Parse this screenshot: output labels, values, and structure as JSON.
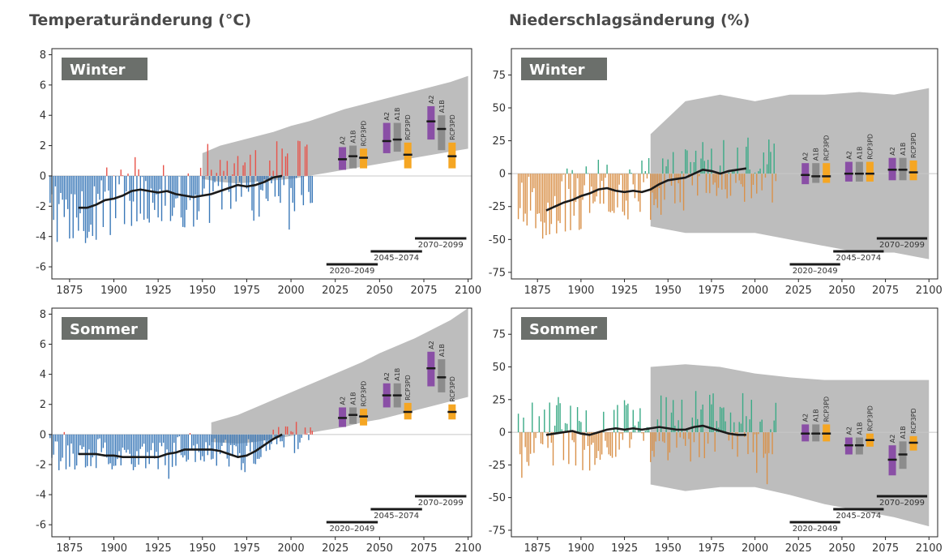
{
  "titles": {
    "temperature": "Temperaturänderung (°C)",
    "precipitation": "Niederschlagsänderung (%)"
  },
  "colors": {
    "temp_positive": "#e8534a",
    "temp_negative": "#3a78b8",
    "precip_positive": "#3aaa86",
    "precip_negative": "#d9914a",
    "uncertainty_band": "#bdbdbd",
    "smoothed_line": "#1a1a1a",
    "scenario_A2": "#8a4fa6",
    "scenario_A1B": "#8c8c8c",
    "scenario_RCP3PD": "#f5a623",
    "label_box": "#6b6f6b",
    "period_bar": "#1a1a1a"
  },
  "chart_data": [
    {
      "type": "bar",
      "variable": "temperature",
      "season": "Winter",
      "xlim": [
        1865,
        2102
      ],
      "ylim": [
        -6.8,
        8.4
      ],
      "xticks": [
        1875,
        1900,
        1925,
        1950,
        1975,
        2000,
        2025,
        2050,
        2075,
        2100
      ],
      "yticks": [
        -6,
        -4,
        -2,
        0,
        2,
        4,
        6,
        8
      ],
      "grid": false,
      "observed_years": [
        1864,
        2012
      ],
      "observed_smoothed": [
        [
          1880,
          -2.1
        ],
        [
          1885,
          -2.1
        ],
        [
          1890,
          -1.9
        ],
        [
          1895,
          -1.6
        ],
        [
          1900,
          -1.5
        ],
        [
          1905,
          -1.3
        ],
        [
          1910,
          -1.0
        ],
        [
          1915,
          -0.9
        ],
        [
          1920,
          -1.0
        ],
        [
          1925,
          -1.1
        ],
        [
          1930,
          -1.0
        ],
        [
          1935,
          -1.2
        ],
        [
          1940,
          -1.3
        ],
        [
          1945,
          -1.4
        ],
        [
          1950,
          -1.3
        ],
        [
          1955,
          -1.2
        ],
        [
          1960,
          -1.0
        ],
        [
          1965,
          -0.8
        ],
        [
          1970,
          -0.6
        ],
        [
          1975,
          -0.7
        ],
        [
          1980,
          -0.6
        ],
        [
          1985,
          -0.4
        ],
        [
          1990,
          -0.1
        ],
        [
          1995,
          0.0
        ]
      ],
      "band": [
        [
          1950,
          -0.2,
          1.5
        ],
        [
          1960,
          -0.4,
          2.0
        ],
        [
          1970,
          -0.5,
          2.3
        ],
        [
          1980,
          -0.4,
          2.6
        ],
        [
          1990,
          -0.3,
          2.9
        ],
        [
          2000,
          -0.2,
          3.3
        ],
        [
          2010,
          0.0,
          3.6
        ],
        [
          2020,
          0.2,
          4.0
        ],
        [
          2030,
          0.4,
          4.4
        ],
        [
          2040,
          0.6,
          4.7
        ],
        [
          2050,
          0.8,
          5.0
        ],
        [
          2060,
          1.0,
          5.3
        ],
        [
          2070,
          1.2,
          5.6
        ],
        [
          2080,
          1.4,
          5.9
        ],
        [
          2090,
          1.6,
          6.2
        ],
        [
          2100,
          1.8,
          6.6
        ]
      ],
      "scenario_groups": [
        {
          "period": "2020–2049",
          "bars": [
            {
              "name": "A2",
              "low": 0.4,
              "high": 1.9,
              "median": 1.1
            },
            {
              "name": "A1B",
              "low": 0.5,
              "high": 2.0,
              "median": 1.3
            },
            {
              "name": "RCP3PD",
              "low": 0.5,
              "high": 1.8,
              "median": 1.2
            }
          ]
        },
        {
          "period": "2045–2074",
          "bars": [
            {
              "name": "A2",
              "low": 1.5,
              "high": 3.5,
              "median": 2.3
            },
            {
              "name": "A1B",
              "low": 1.6,
              "high": 3.5,
              "median": 2.4
            },
            {
              "name": "RCP3PD",
              "low": 0.5,
              "high": 2.2,
              "median": 1.4
            }
          ]
        },
        {
          "period": "2070–2099",
          "bars": [
            {
              "name": "A2",
              "low": 2.4,
              "high": 4.6,
              "median": 3.6
            },
            {
              "name": "A1B",
              "low": 1.7,
              "high": 4.0,
              "median": 3.1
            },
            {
              "name": "RCP3PD",
              "low": 0.5,
              "high": 2.2,
              "median": 1.3
            }
          ]
        }
      ]
    },
    {
      "type": "bar",
      "variable": "precipitation",
      "season": "Winter",
      "xlim": [
        1860,
        2105
      ],
      "ylim": [
        -80,
        95
      ],
      "xticks": [
        1875,
        1900,
        1925,
        1950,
        1975,
        2000,
        2025,
        2050,
        2075,
        2100
      ],
      "yticks": [
        -75,
        -50,
        -25,
        0,
        25,
        50,
        75
      ],
      "grid": false,
      "observed_years": [
        1864,
        2012
      ],
      "observed_smoothed": [
        [
          1880,
          -28
        ],
        [
          1885,
          -25
        ],
        [
          1890,
          -22
        ],
        [
          1895,
          -20
        ],
        [
          1900,
          -17
        ],
        [
          1905,
          -15
        ],
        [
          1910,
          -12
        ],
        [
          1915,
          -11
        ],
        [
          1920,
          -13
        ],
        [
          1925,
          -14
        ],
        [
          1930,
          -13
        ],
        [
          1935,
          -14
        ],
        [
          1940,
          -12
        ],
        [
          1945,
          -8
        ],
        [
          1950,
          -5
        ],
        [
          1955,
          -4
        ],
        [
          1960,
          -3
        ],
        [
          1965,
          0
        ],
        [
          1970,
          3
        ],
        [
          1975,
          2
        ],
        [
          1980,
          0
        ],
        [
          1985,
          2
        ],
        [
          1990,
          3
        ],
        [
          1995,
          4
        ]
      ],
      "band": [
        [
          1940,
          -40,
          30
        ],
        [
          1960,
          -45,
          55
        ],
        [
          1980,
          -45,
          60
        ],
        [
          2000,
          -45,
          55
        ],
        [
          2020,
          -50,
          60
        ],
        [
          2040,
          -55,
          60
        ],
        [
          2060,
          -60,
          62
        ],
        [
          2080,
          -60,
          60
        ],
        [
          2100,
          -65,
          65
        ]
      ],
      "scenario_groups": [
        {
          "period": "2020–2049",
          "bars": [
            {
              "name": "A2",
              "low": -8,
              "high": 8,
              "median": -1
            },
            {
              "name": "A1B",
              "low": -7,
              "high": 8,
              "median": -2
            },
            {
              "name": "RCP3PD",
              "low": -7,
              "high": 8,
              "median": -2
            }
          ]
        },
        {
          "period": "2045–2074",
          "bars": [
            {
              "name": "A2",
              "low": -6,
              "high": 9,
              "median": 0
            },
            {
              "name": "A1B",
              "low": -6,
              "high": 9,
              "median": 0
            },
            {
              "name": "RCP3PD",
              "low": -6,
              "high": 9,
              "median": 0
            }
          ]
        },
        {
          "period": "2070–2099",
          "bars": [
            {
              "name": "A2",
              "low": -5,
              "high": 12,
              "median": 3
            },
            {
              "name": "A1B",
              "low": -5,
              "high": 12,
              "median": 3
            },
            {
              "name": "RCP3PD",
              "low": -5,
              "high": 10,
              "median": 1
            }
          ]
        }
      ]
    },
    {
      "type": "bar",
      "variable": "temperature",
      "season": "Sommer",
      "xlim": [
        1865,
        2102
      ],
      "ylim": [
        -6.8,
        8.4
      ],
      "xticks": [
        1875,
        1900,
        1925,
        1950,
        1975,
        2000,
        2025,
        2050,
        2075,
        2100
      ],
      "yticks": [
        -6,
        -4,
        -2,
        0,
        2,
        4,
        6,
        8
      ],
      "grid": false,
      "observed_years": [
        1864,
        2012
      ],
      "observed_smoothed": [
        [
          1880,
          -1.3
        ],
        [
          1885,
          -1.3
        ],
        [
          1890,
          -1.3
        ],
        [
          1895,
          -1.4
        ],
        [
          1900,
          -1.4
        ],
        [
          1905,
          -1.5
        ],
        [
          1910,
          -1.5
        ],
        [
          1915,
          -1.5
        ],
        [
          1920,
          -1.5
        ],
        [
          1925,
          -1.5
        ],
        [
          1930,
          -1.3
        ],
        [
          1935,
          -1.2
        ],
        [
          1940,
          -1.0
        ],
        [
          1945,
          -1.0
        ],
        [
          1950,
          -1.0
        ],
        [
          1955,
          -1.0
        ],
        [
          1960,
          -1.1
        ],
        [
          1965,
          -1.3
        ],
        [
          1970,
          -1.5
        ],
        [
          1975,
          -1.4
        ],
        [
          1980,
          -1.1
        ],
        [
          1985,
          -0.7
        ],
        [
          1990,
          -0.3
        ],
        [
          1995,
          0.0
        ]
      ],
      "band": [
        [
          1955,
          -0.5,
          0.8
        ],
        [
          1970,
          -0.6,
          1.3
        ],
        [
          1980,
          -0.5,
          1.8
        ],
        [
          1990,
          -0.3,
          2.3
        ],
        [
          2000,
          -0.1,
          2.8
        ],
        [
          2010,
          0.1,
          3.3
        ],
        [
          2020,
          0.3,
          3.8
        ],
        [
          2030,
          0.5,
          4.3
        ],
        [
          2040,
          0.8,
          4.8
        ],
        [
          2050,
          1.0,
          5.4
        ],
        [
          2060,
          1.3,
          5.9
        ],
        [
          2070,
          1.6,
          6.4
        ],
        [
          2080,
          1.9,
          7.0
        ],
        [
          2090,
          2.2,
          7.6
        ],
        [
          2100,
          2.5,
          8.4
        ]
      ],
      "scenario_groups": [
        {
          "period": "2020–2049",
          "bars": [
            {
              "name": "A2",
              "low": 0.5,
              "high": 1.8,
              "median": 1.1
            },
            {
              "name": "A1B",
              "low": 0.7,
              "high": 1.8,
              "median": 1.3
            },
            {
              "name": "RCP3PD",
              "low": 0.6,
              "high": 1.7,
              "median": 1.2
            }
          ]
        },
        {
          "period": "2045–2074",
          "bars": [
            {
              "name": "A2",
              "low": 1.8,
              "high": 3.4,
              "median": 2.6
            },
            {
              "name": "A1B",
              "low": 1.8,
              "high": 3.4,
              "median": 2.6
            },
            {
              "name": "RCP3PD",
              "low": 1.0,
              "high": 2.1,
              "median": 1.5
            }
          ]
        },
        {
          "period": "2070–2099",
          "bars": [
            {
              "name": "A2",
              "low": 3.2,
              "high": 5.5,
              "median": 4.4
            },
            {
              "name": "A1B",
              "low": 2.8,
              "high": 5.0,
              "median": 3.8
            },
            {
              "name": "RCP3PD",
              "low": 1.0,
              "high": 2.0,
              "median": 1.5
            }
          ]
        }
      ]
    },
    {
      "type": "bar",
      "variable": "precipitation",
      "season": "Sommer",
      "xlim": [
        1860,
        2105
      ],
      "ylim": [
        -80,
        95
      ],
      "xticks": [
        1875,
        1900,
        1925,
        1950,
        1975,
        2000,
        2025,
        2050,
        2075,
        2100
      ],
      "yticks": [
        -75,
        -50,
        -25,
        0,
        25,
        50,
        75
      ],
      "grid": false,
      "observed_years": [
        1864,
        2012
      ],
      "observed_smoothed": [
        [
          1880,
          -2
        ],
        [
          1885,
          -1
        ],
        [
          1890,
          0
        ],
        [
          1895,
          1
        ],
        [
          1900,
          -1
        ],
        [
          1905,
          -2
        ],
        [
          1910,
          0
        ],
        [
          1915,
          2
        ],
        [
          1920,
          3
        ],
        [
          1925,
          2
        ],
        [
          1930,
          3
        ],
        [
          1935,
          2
        ],
        [
          1940,
          3
        ],
        [
          1945,
          4
        ],
        [
          1950,
          3
        ],
        [
          1955,
          2
        ],
        [
          1960,
          2
        ],
        [
          1965,
          4
        ],
        [
          1970,
          5
        ],
        [
          1975,
          3
        ],
        [
          1980,
          1
        ],
        [
          1985,
          -1
        ],
        [
          1990,
          -2
        ],
        [
          1995,
          -2
        ]
      ],
      "band": [
        [
          1940,
          -40,
          50
        ],
        [
          1960,
          -45,
          52
        ],
        [
          1980,
          -42,
          50
        ],
        [
          2000,
          -42,
          45
        ],
        [
          2020,
          -48,
          42
        ],
        [
          2040,
          -55,
          40
        ],
        [
          2060,
          -60,
          40
        ],
        [
          2080,
          -65,
          40
        ],
        [
          2100,
          -72,
          40
        ]
      ],
      "scenario_groups": [
        {
          "period": "2020–2049",
          "bars": [
            {
              "name": "A2",
              "low": -7,
              "high": 6,
              "median": -1
            },
            {
              "name": "A1B",
              "low": -7,
              "high": 6,
              "median": -1
            },
            {
              "name": "RCP3PD",
              "low": -7,
              "high": 6,
              "median": -1
            }
          ]
        },
        {
          "period": "2045–2074",
          "bars": [
            {
              "name": "A2",
              "low": -17,
              "high": -4,
              "median": -10
            },
            {
              "name": "A1B",
              "low": -17,
              "high": -4,
              "median": -10
            },
            {
              "name": "RCP3PD",
              "low": -11,
              "high": -1,
              "median": -6
            }
          ]
        },
        {
          "period": "2070–2099",
          "bars": [
            {
              "name": "A2",
              "low": -33,
              "high": -10,
              "median": -21
            },
            {
              "name": "A1B",
              "low": -28,
              "high": -7,
              "median": -17
            },
            {
              "name": "RCP3PD",
              "low": -14,
              "high": -3,
              "median": -8
            }
          ]
        }
      ]
    }
  ]
}
